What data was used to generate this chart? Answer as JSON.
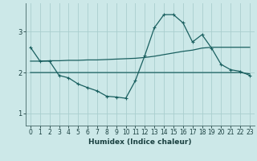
{
  "title": "",
  "xlabel": "Humidex (Indice chaleur)",
  "ylabel": "",
  "bg_color": "#cce8e8",
  "grid_color": "#aacece",
  "line_color": "#1a6060",
  "xlim": [
    -0.5,
    23.5
  ],
  "ylim": [
    0.7,
    3.7
  ],
  "yticks": [
    1,
    2,
    3
  ],
  "xticks": [
    0,
    1,
    2,
    3,
    4,
    5,
    6,
    7,
    8,
    9,
    10,
    11,
    12,
    13,
    14,
    15,
    16,
    17,
    18,
    19,
    20,
    21,
    22,
    23
  ],
  "series1_x": [
    0,
    1,
    2,
    3,
    4,
    5,
    6,
    7,
    8,
    9,
    10,
    11,
    12,
    13,
    14,
    15,
    16,
    17,
    18,
    19,
    20,
    21,
    22,
    23
  ],
  "series1_y": [
    2.62,
    2.28,
    2.28,
    1.93,
    1.87,
    1.72,
    1.63,
    1.55,
    1.42,
    1.4,
    1.37,
    1.8,
    2.42,
    3.1,
    3.42,
    3.42,
    3.22,
    2.75,
    2.93,
    2.6,
    2.2,
    2.07,
    2.03,
    1.93
  ],
  "series2_x": [
    0,
    1,
    2,
    3,
    4,
    5,
    6,
    7,
    8,
    9,
    10,
    11,
    12,
    13,
    14,
    15,
    16,
    17,
    18,
    19,
    20,
    21,
    22,
    23
  ],
  "series2_y": [
    2.0,
    2.0,
    2.0,
    2.0,
    2.0,
    2.0,
    2.0,
    2.0,
    2.0,
    2.0,
    2.0,
    2.0,
    2.0,
    2.0,
    2.0,
    2.0,
    2.0,
    2.0,
    2.0,
    2.0,
    2.0,
    2.0,
    2.0,
    1.97
  ],
  "series3_x": [
    0,
    1,
    2,
    3,
    4,
    5,
    6,
    7,
    8,
    9,
    10,
    11,
    12,
    13,
    14,
    15,
    16,
    17,
    18,
    19,
    20,
    21,
    22,
    23
  ],
  "series3_y": [
    2.28,
    2.28,
    2.29,
    2.29,
    2.3,
    2.3,
    2.31,
    2.31,
    2.32,
    2.33,
    2.34,
    2.35,
    2.37,
    2.4,
    2.44,
    2.48,
    2.52,
    2.55,
    2.6,
    2.62,
    2.62,
    2.62,
    2.62,
    2.62
  ],
  "marker": "+",
  "markersize": 3.5,
  "linewidth": 0.9
}
